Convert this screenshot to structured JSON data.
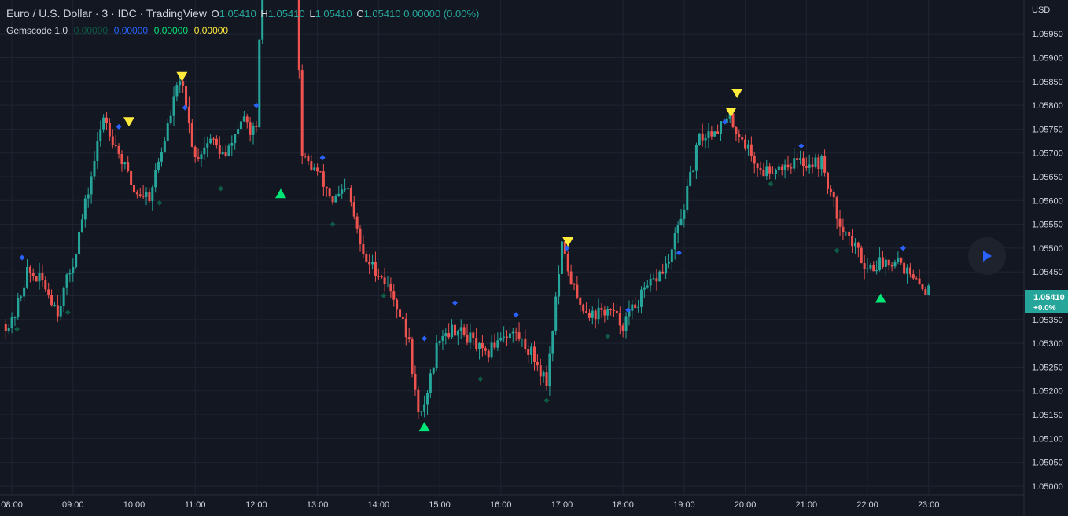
{
  "header": {
    "symbol_title": "Euro / U.S. Dollar · 3 · IDC · TradingView",
    "ohlc": [
      {
        "key": "O",
        "value": "1.05410"
      },
      {
        "key": "H",
        "value": "1.05410"
      },
      {
        "key": "L",
        "value": "1.05410"
      },
      {
        "key": "C",
        "value": "1.05410"
      },
      {
        "key": "",
        "value": "0.00000 (0.00%)"
      }
    ]
  },
  "indicator": {
    "name": "Gemscode 1.0",
    "values": [
      {
        "value": "0.00000",
        "color": "#0f5a45"
      },
      {
        "value": "0.00000",
        "color": "#2962ff"
      },
      {
        "value": "0.00000",
        "color": "#00e676"
      },
      {
        "value": "0.00000",
        "color": "#ffeb3b"
      }
    ]
  },
  "price_axis": {
    "currency": "USD",
    "last_price": "1.05410",
    "last_change": "+0.0%"
  },
  "colors": {
    "background": "#131722",
    "grid": "#1f2433",
    "up": "#26a69a",
    "down": "#ef5350",
    "sell_signal": "#ffeb3b",
    "buy_signal": "#00e676",
    "blue_dot": "#2962ff",
    "dark_dot": "#0f5a45",
    "last_price_label": "#26a69a"
  },
  "chart_data": {
    "type": "candlestick",
    "x_tick_labels": [
      "08:00",
      "09:00",
      "10:00",
      "11:00",
      "12:00",
      "13:00",
      "14:00",
      "15:00",
      "16:00",
      "17:00",
      "18:00",
      "19:00",
      "20:00",
      "21:00",
      "22:00",
      "23:00"
    ],
    "y_tick_labels": [
      "1.05000",
      "1.05050",
      "1.05100",
      "1.05150",
      "1.05200",
      "1.05250",
      "1.05300",
      "1.05350",
      "1.05400",
      "1.05450",
      "1.05500",
      "1.05550",
      "1.05600",
      "1.05650",
      "1.05700",
      "1.05750",
      "1.05800",
      "1.05850",
      "1.05900",
      "1.05950"
    ],
    "ylim": [
      1.0499,
      1.0598
    ],
    "xlim": [
      "07:53",
      "23:45"
    ],
    "grid": true,
    "last_price": 1.0541,
    "price_path": [
      [
        "08:00",
        1.0534
      ],
      [
        "08:15",
        1.0545
      ],
      [
        "08:30",
        1.0543
      ],
      [
        "08:45",
        1.0537
      ],
      [
        "09:00",
        1.0547
      ],
      [
        "09:15",
        1.0562
      ],
      [
        "09:30",
        1.0578
      ],
      [
        "09:45",
        1.057
      ],
      [
        "10:00",
        1.0562
      ],
      [
        "10:15",
        1.0561
      ],
      [
        "10:30",
        1.0573
      ],
      [
        "10:45",
        1.0586
      ],
      [
        "11:00",
        1.0569
      ],
      [
        "11:15",
        1.0573
      ],
      [
        "11:30",
        1.0569
      ],
      [
        "11:45",
        1.0577
      ],
      [
        "12:00",
        1.0574
      ],
      [
        "12:15",
        1.0667
      ],
      [
        "12:30",
        1.0665
      ],
      [
        "12:45",
        1.0569
      ],
      [
        "13:00",
        1.0566
      ],
      [
        "13:15",
        1.056
      ],
      [
        "13:30",
        1.0562
      ],
      [
        "13:45",
        1.0548
      ],
      [
        "14:00",
        1.0545
      ],
      [
        "14:15",
        1.054
      ],
      [
        "14:30",
        1.053
      ],
      [
        "14:40",
        1.0513
      ],
      [
        "14:50",
        1.0522
      ],
      [
        "15:00",
        1.0532
      ],
      [
        "15:15",
        1.0533
      ],
      [
        "15:30",
        1.0531
      ],
      [
        "15:45",
        1.0527
      ],
      [
        "16:00",
        1.0532
      ],
      [
        "16:15",
        1.0532
      ],
      [
        "16:30",
        1.0528
      ],
      [
        "16:45",
        1.0522
      ],
      [
        "16:55",
        1.0541
      ],
      [
        "17:00",
        1.055
      ],
      [
        "17:15",
        1.0539
      ],
      [
        "17:30",
        1.0536
      ],
      [
        "17:45",
        1.0537
      ],
      [
        "18:00",
        1.0534
      ],
      [
        "18:15",
        1.0539
      ],
      [
        "18:30",
        1.0543
      ],
      [
        "18:45",
        1.0547
      ],
      [
        "19:00",
        1.0559
      ],
      [
        "19:15",
        1.0573
      ],
      [
        "19:30",
        1.0575
      ],
      [
        "19:45",
        1.0577
      ],
      [
        "20:00",
        1.0572
      ],
      [
        "20:15",
        1.0566
      ],
      [
        "20:30",
        1.0567
      ],
      [
        "20:45",
        1.0568
      ],
      [
        "21:00",
        1.0568
      ],
      [
        "21:15",
        1.0568
      ],
      [
        "21:30",
        1.0557
      ],
      [
        "21:45",
        1.0551
      ],
      [
        "22:00",
        1.0546
      ],
      [
        "22:15",
        1.0547
      ],
      [
        "22:30",
        1.0548
      ],
      [
        "22:45",
        1.0543
      ],
      [
        "23:00",
        1.0541
      ]
    ],
    "sell_signals": [
      [
        "09:55",
        1.05765
      ],
      [
        "10:47",
        1.0586
      ],
      [
        "17:06",
        1.05513
      ],
      [
        "19:46",
        1.05785
      ],
      [
        "19:52",
        1.05825
      ]
    ],
    "buy_signals": [
      [
        "12:24",
        1.05615
      ],
      [
        "14:45",
        1.05125
      ],
      [
        "22:13",
        1.05395
      ]
    ],
    "blue_markers": [
      [
        "08:10",
        1.0548
      ],
      [
        "09:45",
        1.05755
      ],
      [
        "10:50",
        1.05795
      ],
      [
        "12:00",
        1.058
      ],
      [
        "13:05",
        1.0569
      ],
      [
        "14:45",
        1.0531
      ],
      [
        "15:15",
        1.05385
      ],
      [
        "16:15",
        1.0536
      ],
      [
        "17:05",
        1.055
      ],
      [
        "18:05",
        1.0537
      ],
      [
        "18:55",
        1.0549
      ],
      [
        "19:40",
        1.05765
      ],
      [
        "20:55",
        1.05715
      ],
      [
        "22:35",
        1.055
      ]
    ],
    "dark_markers": [
      [
        "08:05",
        1.0533
      ],
      [
        "08:55",
        1.05365
      ],
      [
        "10:25",
        1.05595
      ],
      [
        "11:25",
        1.05625
      ],
      [
        "13:15",
        1.0555
      ],
      [
        "14:05",
        1.054
      ],
      [
        "15:40",
        1.05225
      ],
      [
        "16:45",
        1.0518
      ],
      [
        "17:45",
        1.05315
      ],
      [
        "20:25",
        1.05635
      ],
      [
        "21:30",
        1.05495
      ]
    ]
  }
}
